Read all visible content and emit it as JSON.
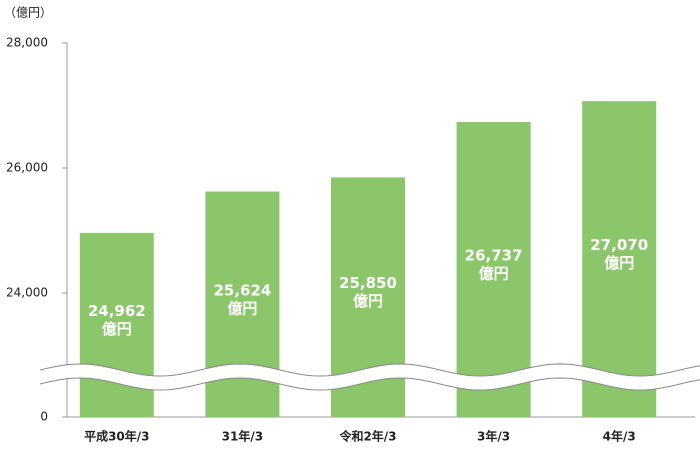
{
  "chart_data": {
    "type": "bar",
    "y_axis_label": "（億円）",
    "categories": [
      "平成30年/3",
      "31年/3",
      "令和2年/3",
      "3年/3",
      "4年/3"
    ],
    "values": [
      24962,
      25624,
      25850,
      26737,
      27070
    ],
    "value_labels": [
      "24,962",
      "25,624",
      "25,850",
      "26,737",
      "27,070"
    ],
    "value_label_unit": "億円",
    "color": "#8cc66b",
    "ylim": [
      0,
      28000
    ],
    "yticks": [
      0,
      {
        "value": 24000,
        "label": "24,000"
      },
      {
        "value": 26000,
        "label": "26,000"
      },
      {
        "value": 28000,
        "label": "28,000"
      }
    ],
    "axis_break": true,
    "grid": false
  }
}
